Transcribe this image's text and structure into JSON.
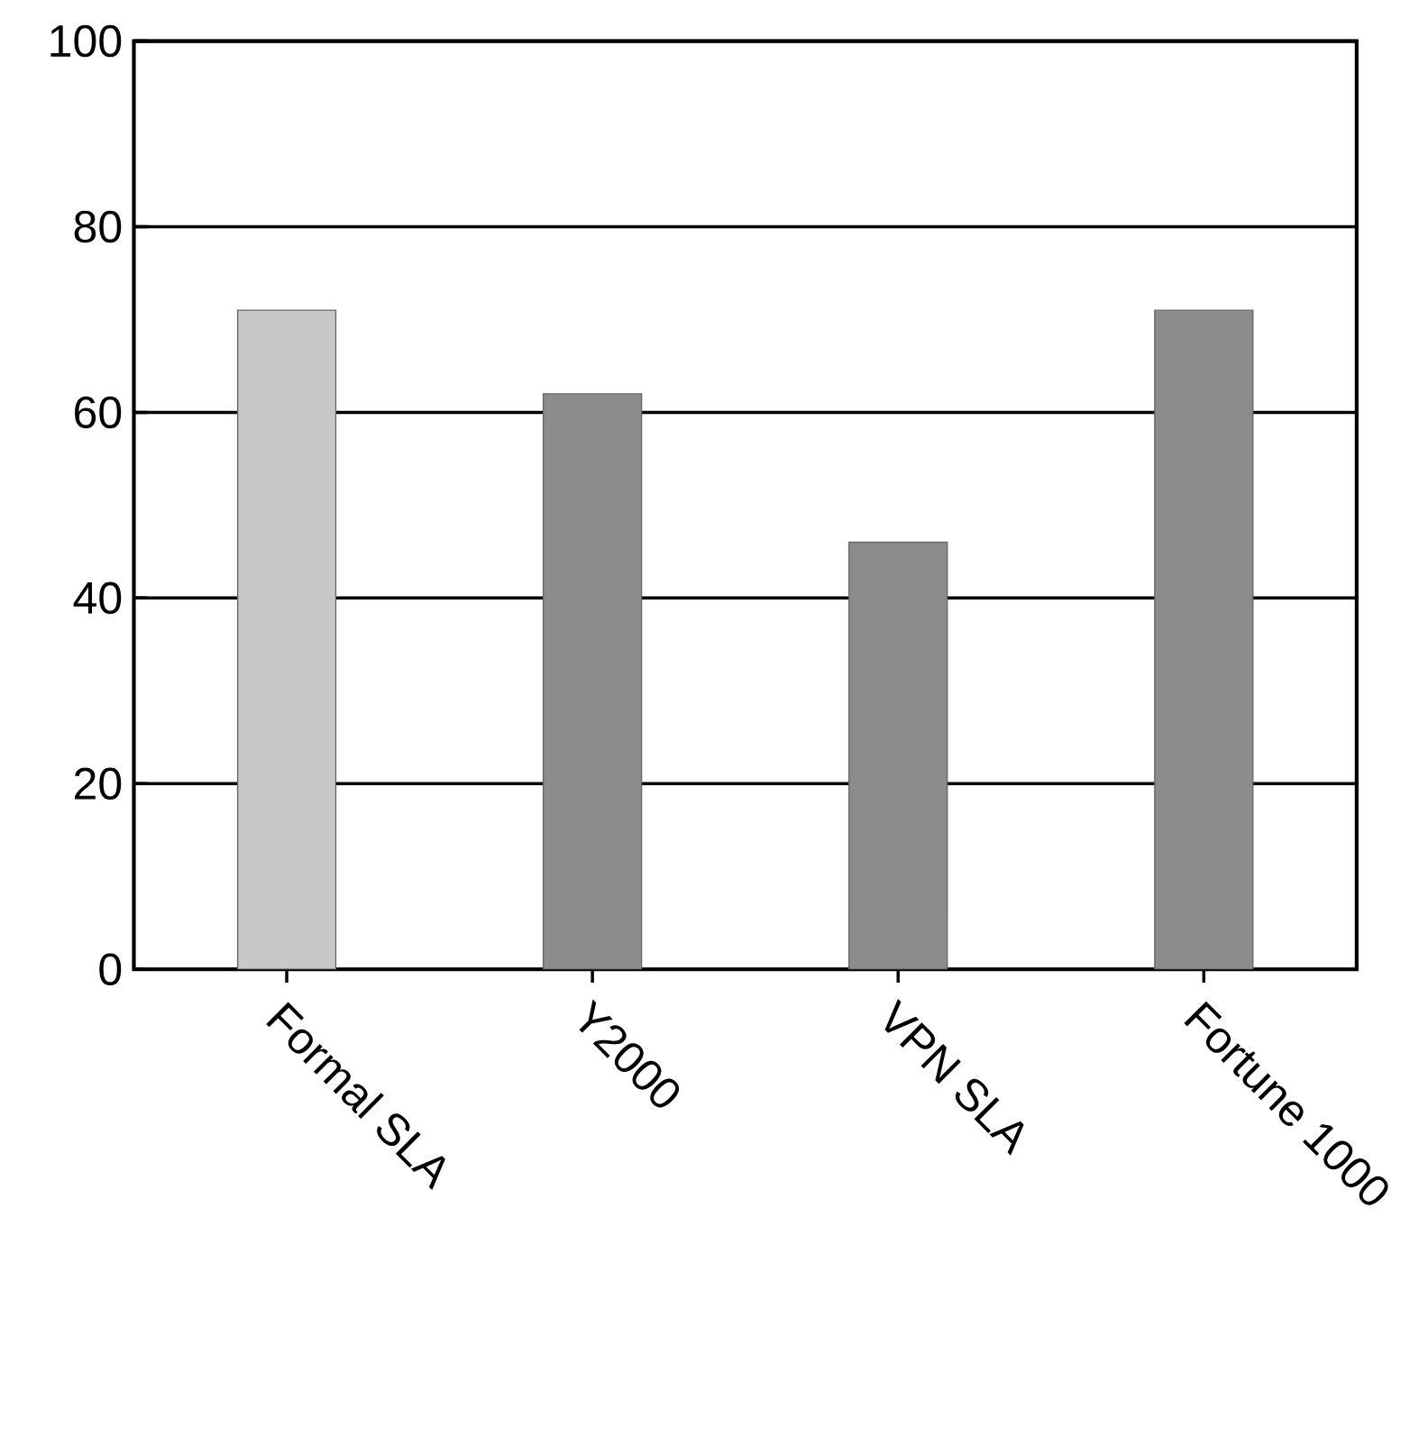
{
  "chart_data": {
    "type": "bar",
    "categories": [
      "Formal SLA",
      "Y2000",
      "VPN SLA",
      "Fortune 1000"
    ],
    "series": [
      {
        "color": "#c8c8c8",
        "values": [
          71,
          null,
          null,
          null
        ]
      },
      {
        "color": "#8c8c8c",
        "values": [
          null,
          62,
          46,
          71
        ]
      }
    ],
    "ylim": [
      0,
      100
    ],
    "yticks": [
      0,
      20,
      40,
      60,
      80,
      100
    ],
    "grid": "y"
  }
}
